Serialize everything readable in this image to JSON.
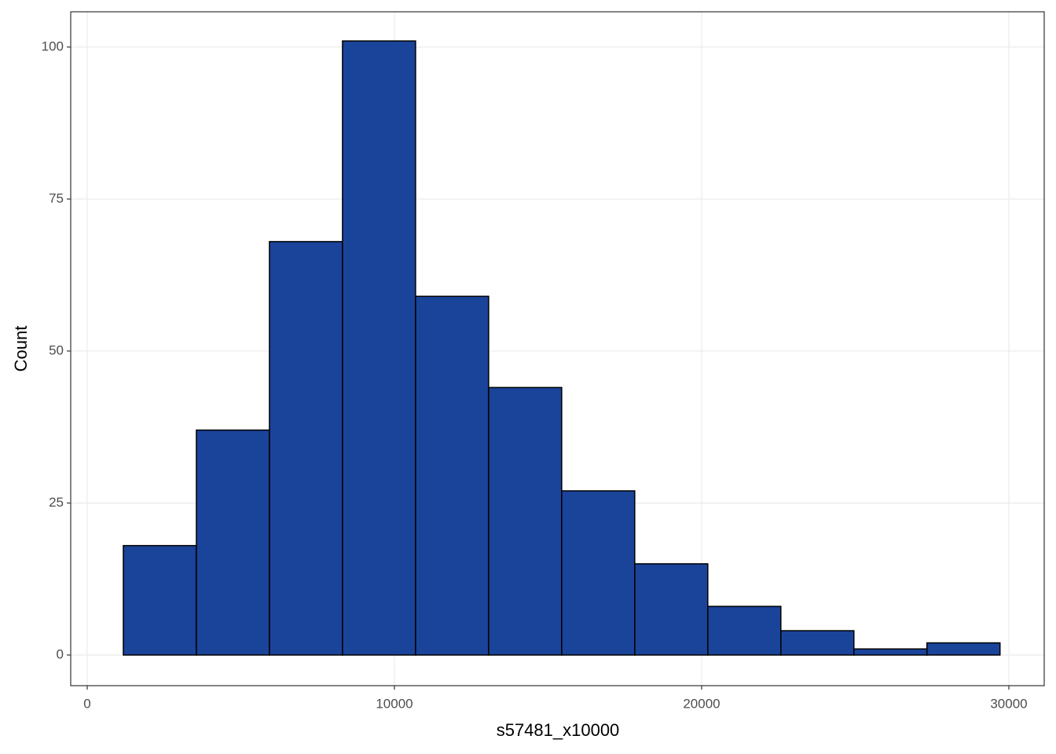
{
  "chart_data": {
    "type": "histogram",
    "x_label": "s57481_x10000",
    "y_label": "Count",
    "bins": [
      1176,
      3554,
      5932,
      8310,
      10688,
      13066,
      15444,
      17822,
      20200,
      22578,
      24956,
      27334,
      29712
    ],
    "values": [
      18,
      37,
      68,
      101,
      59,
      44,
      27,
      15,
      8,
      4,
      1,
      2
    ],
    "color": "#1a439a",
    "edge_color": "#000000",
    "xlim": [
      -537,
      31151
    ],
    "ylim": [
      -5.04,
      105.8
    ],
    "xticks": [
      0,
      10000,
      20000,
      30000
    ],
    "yticks": [
      0,
      25,
      50,
      75,
      100
    ],
    "grid": true
  }
}
